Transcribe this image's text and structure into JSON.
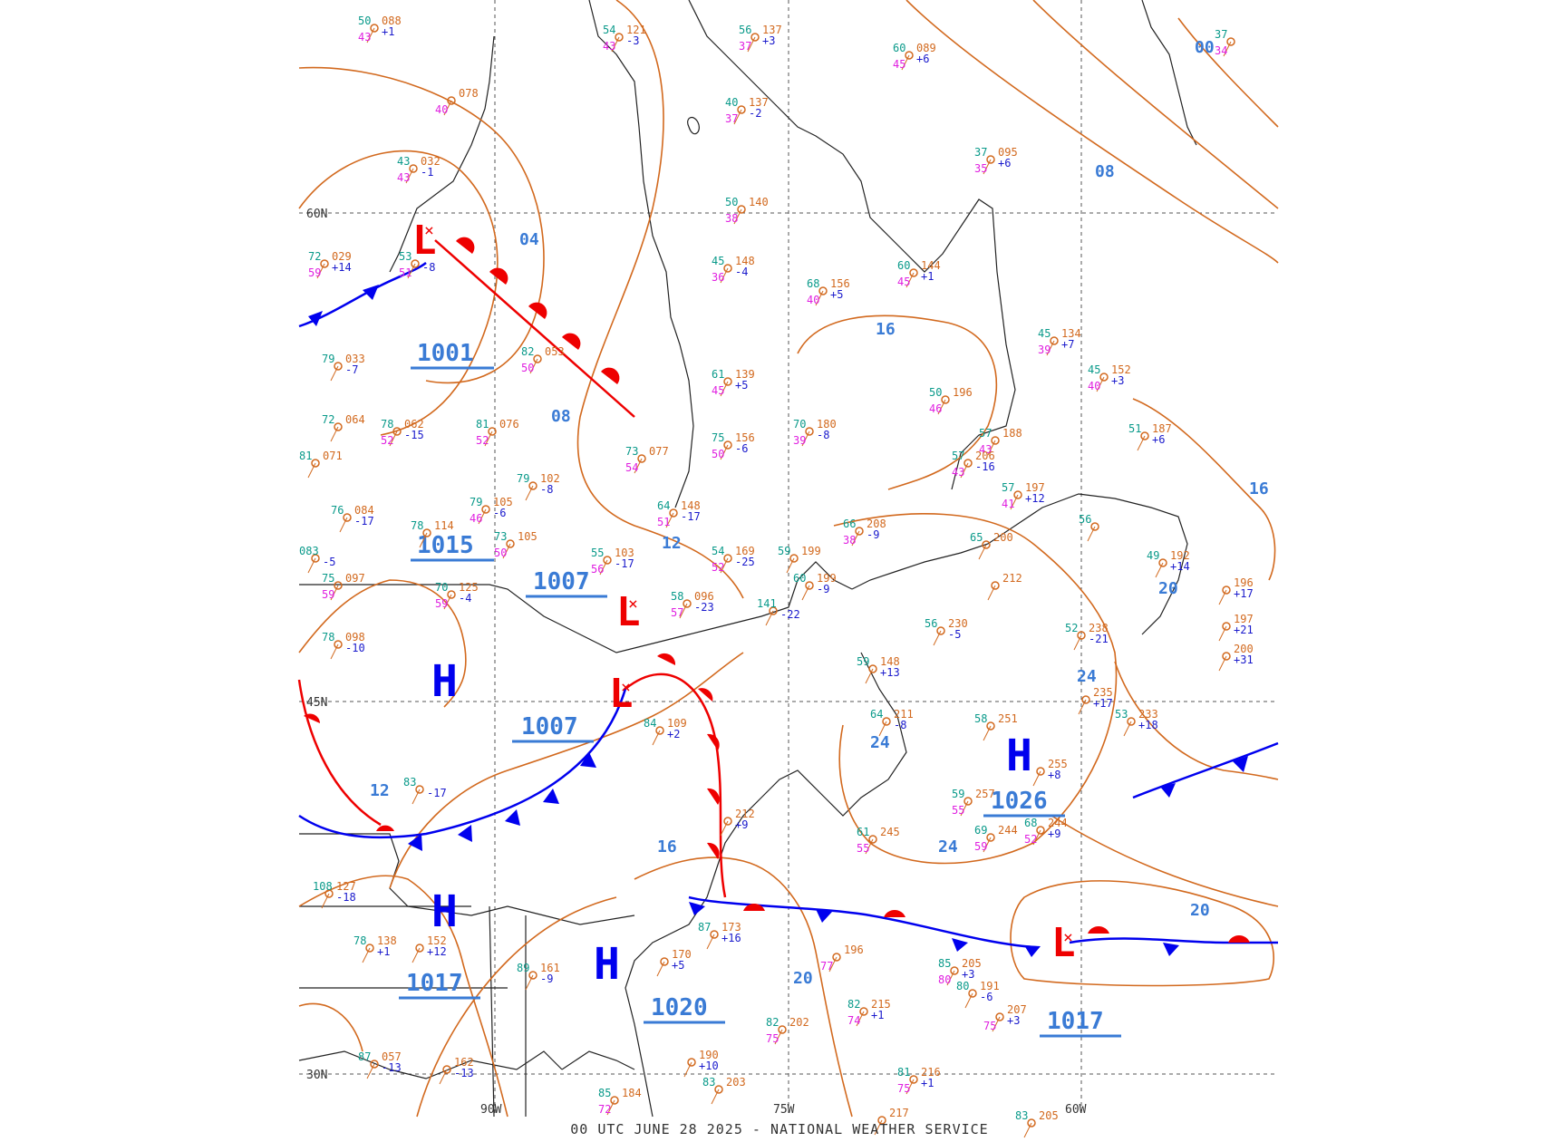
{
  "caption": "00 UTC JUNE 28 2025 - NATIONAL WEATHER SERVICE",
  "colors": {
    "isobar": "#d2691e",
    "isobar_label": "#3a7bd5",
    "high": "#0000ee",
    "low": "#ee0000",
    "cold_front": "#0000ee",
    "warm_front": "#ee0000",
    "coast": "#222222",
    "grid": "#555555",
    "temp": "#0a9a8a",
    "dew": "#e020e0",
    "pressure": "#d2691e",
    "tendency": "#1a1acc"
  },
  "grid_labels": {
    "lon_90": "90W",
    "lon_75": "75W",
    "lon_60": "60W",
    "lat_60": "60N",
    "lat_45": "45N",
    "lat_30": "30N"
  },
  "pressure_centers": [
    {
      "type": "L",
      "value": "1001"
    },
    {
      "type": "H",
      "value": "1015"
    },
    {
      "type": "L",
      "value": "1007"
    },
    {
      "type": "L",
      "value": "1007"
    },
    {
      "type": "H",
      "value": "1017"
    },
    {
      "type": "H",
      "value": "1020"
    },
    {
      "type": "H",
      "value": "1026"
    },
    {
      "type": "L",
      "value": "1017"
    },
    {
      "type": "H",
      "value": ""
    }
  ],
  "isobar_labels": [
    "00",
    "04",
    "08",
    "08",
    "12",
    "12",
    "16",
    "16",
    "16",
    "20",
    "20",
    "20",
    "24",
    "24",
    "24"
  ],
  "stations": [
    {
      "t": "50",
      "p": "088",
      "d": "43",
      "tend": "+1"
    },
    {
      "t": "54",
      "p": "121",
      "d": "43",
      "tend": "-3"
    },
    {
      "t": "56",
      "p": "137",
      "d": "37",
      "tend": "+3"
    },
    {
      "t": "60",
      "p": "089",
      "d": "45",
      "tend": "+6"
    },
    {
      "t": "37",
      "p": "",
      "d": "34",
      "tend": ""
    },
    {
      "t": "",
      "p": "078",
      "d": "40",
      "tend": ""
    },
    {
      "t": "40",
      "p": "137",
      "d": "37",
      "tend": "-2"
    },
    {
      "t": "43",
      "p": "032",
      "d": "43",
      "tend": "-1"
    },
    {
      "t": "37",
      "p": "095",
      "d": "35",
      "tend": "+6"
    },
    {
      "t": "50",
      "p": "140",
      "d": "38",
      "tend": ""
    },
    {
      "t": "72",
      "p": "029",
      "d": "59",
      "tend": "+14"
    },
    {
      "t": "53",
      "p": "",
      "d": "51",
      "tend": "-8"
    },
    {
      "t": "45",
      "p": "148",
      "d": "36",
      "tend": "-4"
    },
    {
      "t": "68",
      "p": "156",
      "d": "40",
      "tend": "+5"
    },
    {
      "t": "60",
      "p": "144",
      "d": "45",
      "tend": "+1"
    },
    {
      "t": "79",
      "p": "033",
      "d": "",
      "tend": "-7"
    },
    {
      "t": "82",
      "p": "053",
      "d": "50",
      "tend": ""
    },
    {
      "t": "61",
      "p": "139",
      "d": "45",
      "tend": "+5"
    },
    {
      "t": "45",
      "p": "134",
      "d": "39",
      "tend": "+7"
    },
    {
      "t": "72",
      "p": "064",
      "d": "",
      "tend": ""
    },
    {
      "t": "78",
      "p": "062",
      "d": "52",
      "tend": "-15"
    },
    {
      "t": "81",
      "p": "076",
      "d": "52",
      "tend": ""
    },
    {
      "t": "81",
      "p": "071",
      "d": "",
      "tend": ""
    },
    {
      "t": "50",
      "p": "196",
      "d": "46",
      "tend": ""
    },
    {
      "t": "45",
      "p": "152",
      "d": "40",
      "tend": "+3"
    },
    {
      "t": "75",
      "p": "156",
      "d": "50",
      "tend": "-6"
    },
    {
      "t": "70",
      "p": "180",
      "d": "39",
      "tend": "-8"
    },
    {
      "t": "57",
      "p": "188",
      "d": "43",
      "tend": ""
    },
    {
      "t": "57",
      "p": "206",
      "d": "43",
      "tend": "-16"
    },
    {
      "t": "73",
      "p": "077",
      "d": "54",
      "tend": ""
    },
    {
      "t": "51",
      "p": "187",
      "d": "",
      "tend": "+6"
    },
    {
      "t": "79",
      "p": "102",
      "d": "",
      "tend": "-8"
    },
    {
      "t": "79",
      "p": "105",
      "d": "46",
      "tend": "-6"
    },
    {
      "t": "64",
      "p": "148",
      "d": "51",
      "tend": "-17"
    },
    {
      "t": "57",
      "p": "197",
      "d": "41",
      "tend": "+12"
    },
    {
      "t": "76",
      "p": "084",
      "d": "",
      "tend": "-17"
    },
    {
      "t": "78",
      "p": "114",
      "d": "",
      "tend": ""
    },
    {
      "t": "73",
      "p": "105",
      "d": "50",
      "tend": ""
    },
    {
      "t": "55",
      "p": "103",
      "d": "56",
      "tend": "-17"
    },
    {
      "t": "54",
      "p": "169",
      "d": "52",
      "tend": "-25"
    },
    {
      "t": "59",
      "p": "199",
      "d": "",
      "tend": ""
    },
    {
      "t": "66",
      "p": "208",
      "d": "38",
      "tend": "-9"
    },
    {
      "t": "65",
      "p": "200",
      "d": "",
      "tend": ""
    },
    {
      "t": "56",
      "p": "",
      "d": "",
      "tend": ""
    },
    {
      "t": "49",
      "p": "192",
      "d": "",
      "tend": "+14"
    },
    {
      "t": "083",
      "p": "",
      "d": "",
      "tend": "-5"
    },
    {
      "t": "75",
      "p": "097",
      "d": "59",
      "tend": ""
    },
    {
      "t": "70",
      "p": "125",
      "d": "59",
      "tend": "-4"
    },
    {
      "t": "58",
      "p": "096",
      "d": "57",
      "tend": "-23"
    },
    {
      "t": "141",
      "p": "",
      "d": "",
      "tend": "-22"
    },
    {
      "t": "60",
      "p": "199",
      "d": "",
      "tend": "-9"
    },
    {
      "t": "",
      "p": "212",
      "d": "",
      "tend": ""
    },
    {
      "t": "",
      "p": "196",
      "d": "",
      "tend": "+17"
    },
    {
      "t": "78",
      "p": "098",
      "d": "",
      "tend": "-10"
    },
    {
      "t": "56",
      "p": "230",
      "d": "",
      "tend": "-5"
    },
    {
      "t": "52",
      "p": "238",
      "d": "",
      "tend": "-21"
    },
    {
      "t": "",
      "p": "197",
      "d": "",
      "tend": "+21"
    },
    {
      "t": "",
      "p": "200",
      "d": "",
      "tend": "+31"
    },
    {
      "t": "59",
      "p": "148",
      "d": "",
      "tend": "+13"
    },
    {
      "t": "",
      "p": "235",
      "d": "",
      "tend": "+17"
    },
    {
      "t": "53",
      "p": "233",
      "d": "",
      "tend": "+18"
    },
    {
      "t": "84",
      "p": "109",
      "d": "",
      "tend": "+2"
    },
    {
      "t": "64",
      "p": "211",
      "d": "",
      "tend": "-8"
    },
    {
      "t": "58",
      "p": "251",
      "d": "",
      "tend": ""
    },
    {
      "t": "59",
      "p": "257",
      "d": "55",
      "tend": ""
    },
    {
      "t": "69",
      "p": "244",
      "d": "59",
      "tend": ""
    },
    {
      "t": "68",
      "p": "244",
      "d": "52",
      "tend": "+9"
    },
    {
      "t": "",
      "p": "255",
      "d": "",
      "tend": "+8"
    },
    {
      "t": "83",
      "p": "",
      "d": "",
      "tend": "-17"
    },
    {
      "t": "",
      "p": "212",
      "d": "",
      "tend": "+9"
    },
    {
      "t": "61",
      "p": "245",
      "d": "55",
      "tend": ""
    },
    {
      "t": "108",
      "p": "127",
      "d": "",
      "tend": "-18"
    },
    {
      "t": "78",
      "p": "138",
      "d": "",
      "tend": "+1"
    },
    {
      "t": "",
      "p": "152",
      "d": "",
      "tend": "+12"
    },
    {
      "t": "87",
      "p": "173",
      "d": "",
      "tend": "+16"
    },
    {
      "t": "85",
      "p": "205",
      "d": "80",
      "tend": "+3"
    },
    {
      "t": "80",
      "p": "191",
      "d": "",
      "tend": "-6"
    },
    {
      "t": "",
      "p": "207",
      "d": "75",
      "tend": "+3"
    },
    {
      "t": "",
      "p": "196",
      "d": "77",
      "tend": ""
    },
    {
      "t": "82",
      "p": "215",
      "d": "74",
      "tend": "+1"
    },
    {
      "t": "82",
      "p": "202",
      "d": "75",
      "tend": ""
    },
    {
      "t": "89",
      "p": "161",
      "d": "",
      "tend": "-9"
    },
    {
      "t": "",
      "p": "170",
      "d": "",
      "tend": "+5"
    },
    {
      "t": "87",
      "p": "057",
      "d": "",
      "tend": "-13"
    },
    {
      "t": "",
      "p": "162",
      "d": "",
      "tend": "-13"
    },
    {
      "t": "",
      "p": "190",
      "d": "",
      "tend": "+10"
    },
    {
      "t": "83",
      "p": "203",
      "d": "",
      "tend": ""
    },
    {
      "t": "85",
      "p": "184",
      "d": "72",
      "tend": ""
    },
    {
      "t": "81",
      "p": "216",
      "d": "75",
      "tend": "+1"
    },
    {
      "t": "",
      "p": "217",
      "d": "",
      "tend": ""
    },
    {
      "t": "83",
      "p": "205",
      "d": "",
      "tend": ""
    }
  ]
}
